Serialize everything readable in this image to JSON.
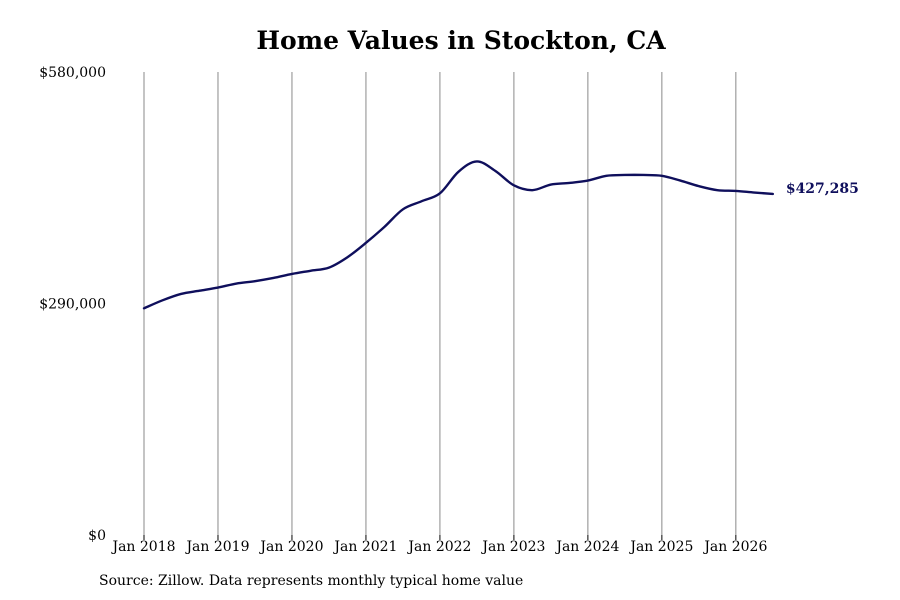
{
  "chart_data": {
    "type": "line",
    "title": "Home Values in Stockton, CA",
    "xlabel": "",
    "ylabel": "",
    "ylim": [
      0,
      580000
    ],
    "y_tick_labels": [
      "$0",
      "$290,000",
      "$580,000"
    ],
    "y_ticks": [
      0,
      290000,
      580000
    ],
    "x_tick_labels": [
      "Jan 2018",
      "Jan 2019",
      "Jan 2020",
      "Jan 2021",
      "Jan 2022",
      "Jan 2023",
      "Jan 2024",
      "Jan 2025",
      "Jan 2026"
    ],
    "x_ticks": [
      "2018-01",
      "2019-01",
      "2020-01",
      "2021-01",
      "2022-01",
      "2023-01",
      "2024-01",
      "2025-01",
      "2026-01"
    ],
    "xlim": [
      "2018-01",
      "2026-08"
    ],
    "grid": "vertical",
    "series": [
      {
        "color": "#0f0f5c",
        "points": [
          [
            "2018-01",
            284000
          ],
          [
            "2018-04",
            294000
          ],
          [
            "2018-07",
            302000
          ],
          [
            "2018-10",
            306000
          ],
          [
            "2019-01",
            310000
          ],
          [
            "2019-04",
            315000
          ],
          [
            "2019-07",
            318000
          ],
          [
            "2019-10",
            322000
          ],
          [
            "2020-01",
            327000
          ],
          [
            "2020-04",
            331000
          ],
          [
            "2020-07",
            335000
          ],
          [
            "2020-10",
            348000
          ],
          [
            "2021-01",
            366000
          ],
          [
            "2021-04",
            386000
          ],
          [
            "2021-07",
            408000
          ],
          [
            "2021-10",
            418000
          ],
          [
            "2022-01",
            428000
          ],
          [
            "2022-04",
            455000
          ],
          [
            "2022-07",
            468000
          ],
          [
            "2022-10",
            456000
          ],
          [
            "2023-01",
            438000
          ],
          [
            "2023-04",
            432000
          ],
          [
            "2023-07",
            439000
          ],
          [
            "2023-10",
            441000
          ],
          [
            "2024-01",
            444000
          ],
          [
            "2024-04",
            450000
          ],
          [
            "2024-07",
            451000
          ],
          [
            "2024-10",
            451000
          ],
          [
            "2025-01",
            450000
          ],
          [
            "2025-04",
            444000
          ],
          [
            "2025-07",
            437000
          ],
          [
            "2025-10",
            432000
          ],
          [
            "2026-01",
            431000
          ],
          [
            "2026-04",
            429000
          ],
          [
            "2026-07",
            427285
          ]
        ]
      }
    ],
    "last_value_label": "$427,285"
  },
  "footer": {
    "source": "Source: Zillow. Data represents monthly typical home value"
  }
}
